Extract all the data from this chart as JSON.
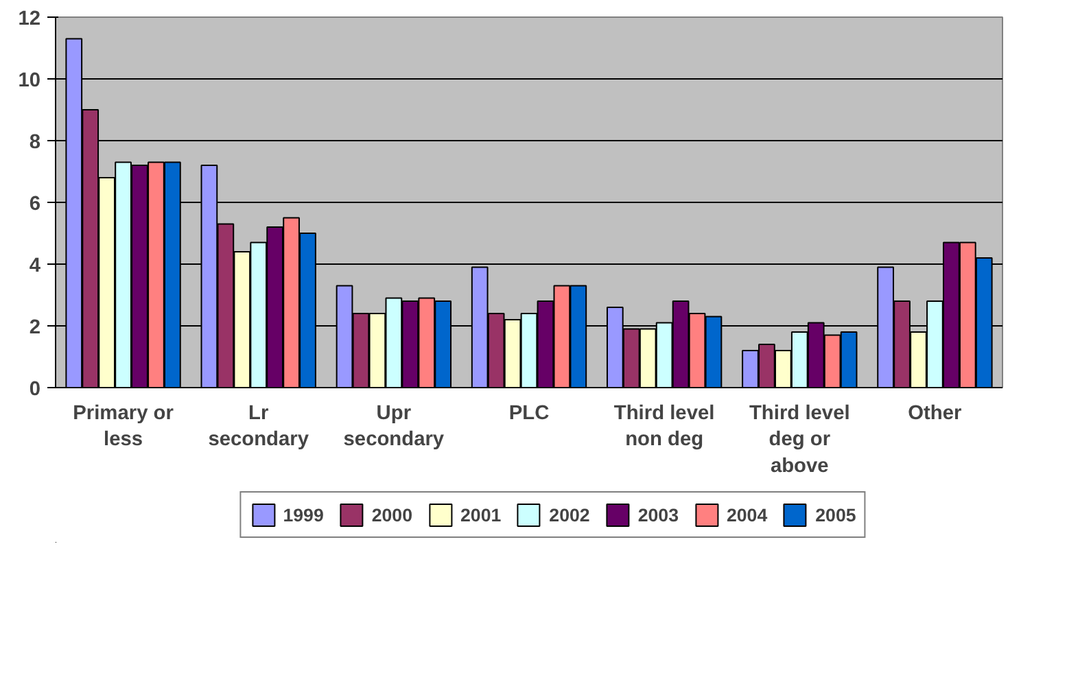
{
  "chart_data": {
    "type": "bar",
    "categories": [
      "Primary or less",
      "Lr secondary",
      "Upr secondary",
      "PLC",
      "Third level non deg",
      "Third level deg or above",
      "Other"
    ],
    "series": [
      {
        "name": "1999",
        "color": "#9999ff",
        "values": [
          11.3,
          7.2,
          3.3,
          3.9,
          2.6,
          1.2,
          3.9
        ]
      },
      {
        "name": "2000",
        "color": "#993366",
        "values": [
          9.0,
          5.3,
          2.4,
          2.4,
          1.9,
          1.4,
          2.8
        ]
      },
      {
        "name": "2001",
        "color": "#ffffcc",
        "values": [
          6.8,
          4.4,
          2.4,
          2.2,
          1.9,
          1.2,
          1.8
        ]
      },
      {
        "name": "2002",
        "color": "#ccffff",
        "values": [
          7.3,
          4.7,
          2.9,
          2.4,
          2.1,
          1.8,
          2.8
        ]
      },
      {
        "name": "2003",
        "color": "#660066",
        "values": [
          7.2,
          5.2,
          2.8,
          2.8,
          2.8,
          2.1,
          4.7
        ]
      },
      {
        "name": "2004",
        "color": "#ff8080",
        "values": [
          7.3,
          5.5,
          2.9,
          3.3,
          2.4,
          1.7,
          4.7
        ]
      },
      {
        "name": "2005",
        "color": "#0066cc",
        "values": [
          7.3,
          5.0,
          2.8,
          3.3,
          2.3,
          1.8,
          4.2
        ]
      }
    ],
    "ylim": [
      0,
      12
    ],
    "yticks": [
      0,
      2,
      4,
      6,
      8,
      10,
      12
    ],
    "grid": "y",
    "legend": "bottom"
  }
}
